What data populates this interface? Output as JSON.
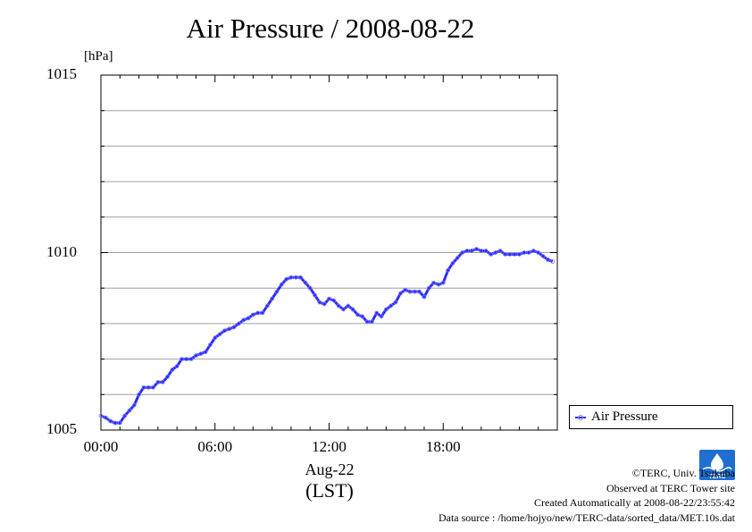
{
  "chart_data": {
    "type": "line",
    "title": "Air Pressure / 2008-08-22",
    "ylabel": "[hPa]",
    "xlabel_date": "Aug-22",
    "xlabel_tz": "(LST)",
    "xlim": [
      0,
      24
    ],
    "ylim": [
      1005,
      1015
    ],
    "x_ticks": [
      {
        "label": "00:00",
        "value": 0
      },
      {
        "label": "06:00",
        "value": 6
      },
      {
        "label": "12:00",
        "value": 12
      },
      {
        "label": "18:00",
        "value": 18
      }
    ],
    "y_ticks": [
      {
        "label": "1005",
        "value": 1005
      },
      {
        "label": "1010",
        "value": 1010
      },
      {
        "label": "1015",
        "value": 1015
      }
    ],
    "y_gridlines": [
      1006,
      1007,
      1008,
      1009,
      1010,
      1011,
      1012,
      1013,
      1014
    ],
    "legend": {
      "position": "right-bottom"
    },
    "series": [
      {
        "name": "Air Pressure",
        "color": "#2b2bff",
        "marker_color": "#7a7aff",
        "x": [
          0.0,
          0.25,
          0.5,
          0.75,
          1.0,
          1.25,
          1.5,
          1.75,
          2.0,
          2.25,
          2.5,
          2.75,
          3.0,
          3.25,
          3.5,
          3.75,
          4.0,
          4.25,
          4.5,
          4.75,
          5.0,
          5.25,
          5.5,
          5.75,
          6.0,
          6.25,
          6.5,
          6.75,
          7.0,
          7.25,
          7.5,
          7.75,
          8.0,
          8.25,
          8.5,
          8.75,
          9.0,
          9.25,
          9.5,
          9.75,
          10.0,
          10.25,
          10.5,
          10.75,
          11.0,
          11.25,
          11.5,
          11.75,
          12.0,
          12.25,
          12.5,
          12.75,
          13.0,
          13.25,
          13.5,
          13.75,
          14.0,
          14.25,
          14.5,
          14.75,
          15.0,
          15.25,
          15.5,
          15.75,
          16.0,
          16.25,
          16.5,
          16.75,
          17.0,
          17.25,
          17.5,
          17.75,
          18.0,
          18.25,
          18.5,
          18.75,
          19.0,
          19.25,
          19.5,
          19.75,
          20.0,
          20.25,
          20.5,
          20.75,
          21.0,
          21.25,
          21.5,
          21.75,
          22.0,
          22.25,
          22.5,
          22.75,
          23.0,
          23.25,
          23.5,
          23.75
        ],
        "values": [
          1005.4,
          1005.35,
          1005.25,
          1005.2,
          1005.2,
          1005.4,
          1005.55,
          1005.7,
          1006.0,
          1006.2,
          1006.2,
          1006.2,
          1006.35,
          1006.35,
          1006.5,
          1006.7,
          1006.8,
          1007.0,
          1007.0,
          1007.0,
          1007.1,
          1007.15,
          1007.2,
          1007.4,
          1007.6,
          1007.7,
          1007.8,
          1007.85,
          1007.9,
          1008.0,
          1008.1,
          1008.15,
          1008.25,
          1008.3,
          1008.3,
          1008.5,
          1008.7,
          1008.9,
          1009.1,
          1009.25,
          1009.3,
          1009.3,
          1009.3,
          1009.15,
          1009.0,
          1008.8,
          1008.6,
          1008.55,
          1008.7,
          1008.65,
          1008.5,
          1008.4,
          1008.5,
          1008.4,
          1008.25,
          1008.2,
          1008.05,
          1008.05,
          1008.3,
          1008.2,
          1008.4,
          1008.5,
          1008.6,
          1008.85,
          1008.95,
          1008.9,
          1008.9,
          1008.9,
          1008.75,
          1009.0,
          1009.15,
          1009.1,
          1009.15,
          1009.5,
          1009.7,
          1009.85,
          1010.0,
          1010.05,
          1010.05,
          1010.1,
          1010.05,
          1010.05,
          1009.95,
          1010.0,
          1010.05,
          1009.95,
          1009.95,
          1009.95,
          1009.95,
          1010.0,
          1010.0,
          1010.05,
          1010.0,
          1009.9,
          1009.8,
          1009.75
        ]
      }
    ]
  },
  "credits": {
    "line1": "©TERC, Univ. Tsukuba",
    "line2": "Observed at TERC Tower site",
    "line3": "Created Automatically at 2008-08-22/23:55:42",
    "line4": "Data source : /home/hojyo/new/TERC-data/sorted_data/MET.10s.dat"
  },
  "logo": {
    "text": "TERC",
    "color": "#1f6fd1"
  }
}
